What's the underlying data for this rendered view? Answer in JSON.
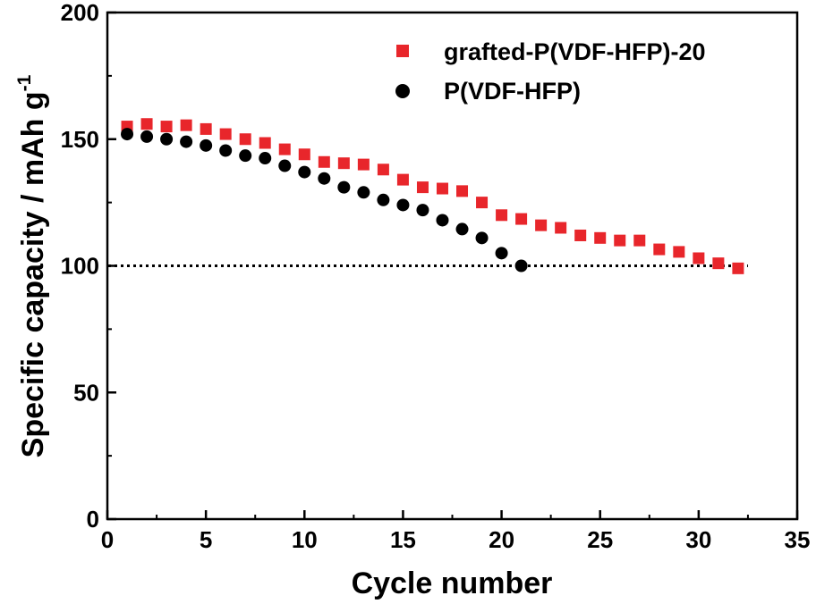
{
  "chart_data": {
    "type": "scatter",
    "xlabel": "Cycle number",
    "ylabel_main": "Specific capacity / mAh g",
    "ylabel_sup": "-1",
    "xlim": [
      0,
      35
    ],
    "ylim": [
      0,
      200
    ],
    "x_ticks": [
      0,
      5,
      10,
      15,
      20,
      25,
      30,
      35
    ],
    "x_tick_labels": [
      "0",
      "5",
      "10",
      "15",
      "20",
      "25",
      "30",
      "35"
    ],
    "y_ticks": [
      0,
      50,
      100,
      150,
      200
    ],
    "y_tick_labels": [
      "0",
      "50",
      "100",
      "150",
      "200"
    ],
    "grid": false,
    "legend_position": "top-right",
    "reference_line": {
      "y": 100,
      "style": "dotted"
    },
    "series": [
      {
        "name": "grafted-P(VDF-HFP)-20",
        "marker": "square",
        "color": "#e8262b",
        "x": [
          1,
          2,
          3,
          4,
          5,
          6,
          7,
          8,
          9,
          10,
          11,
          12,
          13,
          14,
          15,
          16,
          17,
          18,
          19,
          20,
          21,
          22,
          23,
          24,
          25,
          26,
          27,
          28,
          29,
          30,
          31,
          32
        ],
        "y": [
          155,
          156,
          155,
          155.5,
          154,
          152,
          150,
          148.5,
          146,
          144,
          141,
          140.5,
          140,
          138,
          134,
          131,
          130.5,
          129.5,
          125,
          120,
          118.5,
          116,
          115,
          112,
          111,
          110,
          110,
          106.5,
          105.5,
          103,
          101,
          99
        ]
      },
      {
        "name": "P(VDF-HFP)",
        "marker": "circle",
        "color": "#000000",
        "x": [
          1,
          2,
          3,
          4,
          5,
          6,
          7,
          8,
          9,
          10,
          11,
          12,
          13,
          14,
          15,
          16,
          17,
          18,
          19,
          20,
          21
        ],
        "y": [
          152,
          151,
          150,
          149,
          147.5,
          145.5,
          143.5,
          142.5,
          139.5,
          137,
          134.5,
          131,
          129,
          126,
          124,
          122,
          118,
          114.5,
          111,
          105,
          100
        ]
      }
    ]
  }
}
